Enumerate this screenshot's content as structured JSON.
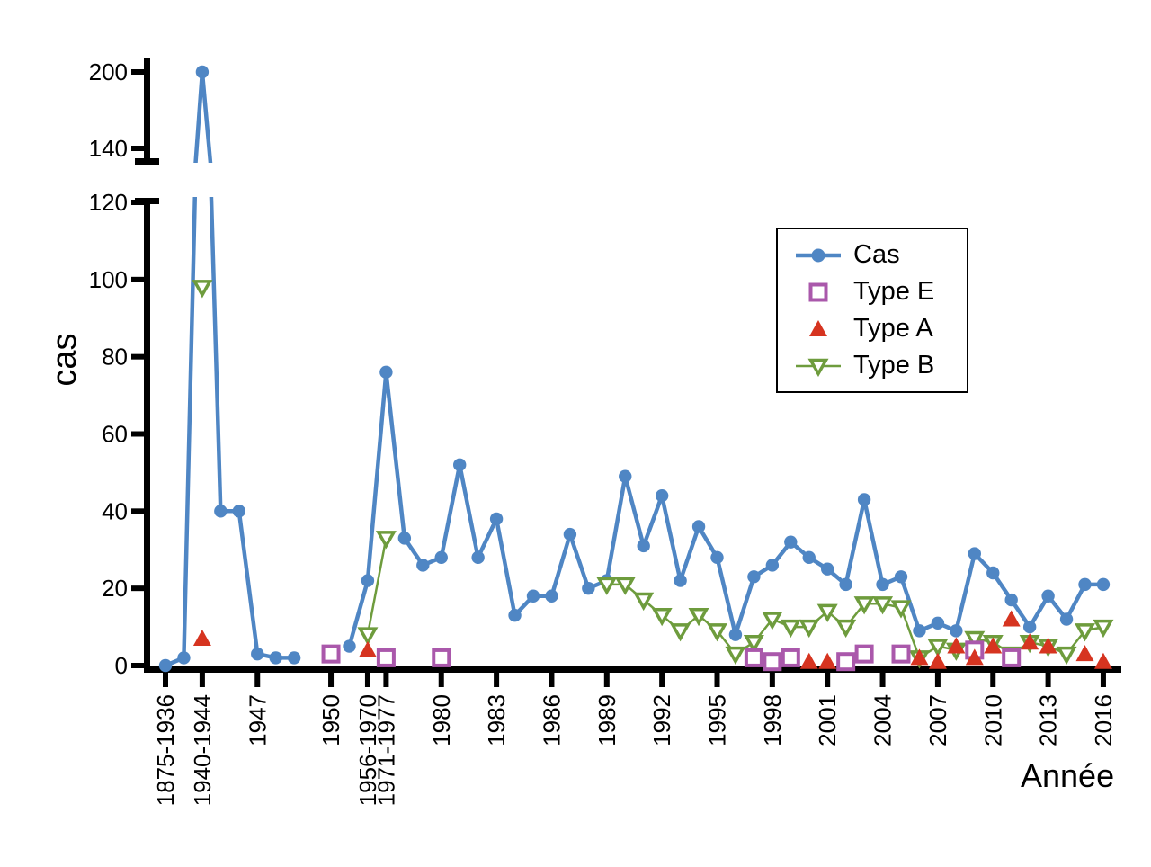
{
  "figure": {
    "y_axis_title": "cas",
    "x_axis_title": "Année"
  },
  "chart_data": {
    "type": "line",
    "title": "",
    "xlabel": "Année",
    "ylabel": "cas",
    "grid": false,
    "legend_position": "upper right",
    "y_axis": {
      "broken": true,
      "lower_range": [
        0,
        120
      ],
      "lower_ticks": [
        0,
        20,
        40,
        60,
        80,
        100,
        120
      ],
      "upper_range": [
        140,
        200
      ],
      "upper_ticks": [
        140,
        200
      ]
    },
    "categories": [
      "1875-1936",
      "",
      "1940-1944",
      "",
      "",
      "1947",
      "",
      "",
      "",
      "1950",
      "",
      "1956-1970",
      "1971-1977",
      "",
      "",
      "1980",
      "",
      "",
      "1983",
      "",
      "",
      "1986",
      "",
      "",
      "1989",
      "",
      "",
      "1992",
      "",
      "",
      "1995",
      "",
      "",
      "1998",
      "",
      "",
      "2001",
      "",
      "",
      "2004",
      "",
      "",
      "2007",
      "",
      "",
      "2010",
      "",
      "",
      "2013",
      "",
      "",
      "2016"
    ],
    "series": [
      {
        "name": "Cas",
        "color": "#4f86c4",
        "marker": "circle",
        "line": true,
        "values": [
          0,
          2,
          200,
          40,
          40,
          3,
          2,
          2,
          null,
          null,
          5,
          22,
          76,
          33,
          26,
          28,
          52,
          28,
          38,
          13,
          18,
          18,
          34,
          20,
          22,
          49,
          31,
          44,
          22,
          36,
          28,
          8,
          23,
          26,
          32,
          28,
          25,
          21,
          43,
          21,
          23,
          9,
          11,
          9,
          29,
          24,
          17,
          10,
          18,
          12,
          21,
          21
        ]
      },
      {
        "name": "Type E",
        "color": "#aa58ab",
        "marker": "square-open",
        "line": false,
        "values": [
          null,
          null,
          null,
          null,
          null,
          null,
          null,
          null,
          null,
          3,
          null,
          null,
          2,
          null,
          null,
          2,
          null,
          null,
          null,
          null,
          null,
          null,
          null,
          null,
          null,
          null,
          null,
          null,
          null,
          null,
          null,
          null,
          2,
          1,
          2,
          null,
          null,
          1,
          3,
          null,
          3,
          null,
          null,
          null,
          4,
          null,
          2,
          null,
          null,
          null,
          null,
          null
        ]
      },
      {
        "name": "Type A",
        "color": "#d63420",
        "marker": "triangle-up",
        "line": false,
        "values": [
          null,
          null,
          7,
          null,
          null,
          null,
          null,
          null,
          null,
          null,
          null,
          4,
          null,
          null,
          null,
          null,
          null,
          null,
          null,
          null,
          null,
          null,
          null,
          null,
          null,
          null,
          null,
          null,
          null,
          null,
          null,
          null,
          null,
          null,
          null,
          1,
          1,
          null,
          null,
          null,
          null,
          2,
          1,
          5,
          2,
          5,
          12,
          6,
          5,
          null,
          3,
          1
        ]
      },
      {
        "name": "Type B",
        "color": "#6e9c3d",
        "marker": "triangle-down-open",
        "line": true,
        "values": [
          null,
          null,
          98,
          null,
          null,
          null,
          null,
          null,
          null,
          null,
          null,
          8,
          33,
          null,
          null,
          null,
          null,
          null,
          null,
          null,
          null,
          null,
          null,
          null,
          21,
          21,
          17,
          13,
          9,
          13,
          9,
          3,
          6,
          12,
          10,
          10,
          14,
          10,
          16,
          16,
          15,
          2,
          5,
          4,
          7,
          6,
          3,
          6,
          5,
          3,
          9,
          10
        ]
      }
    ]
  }
}
